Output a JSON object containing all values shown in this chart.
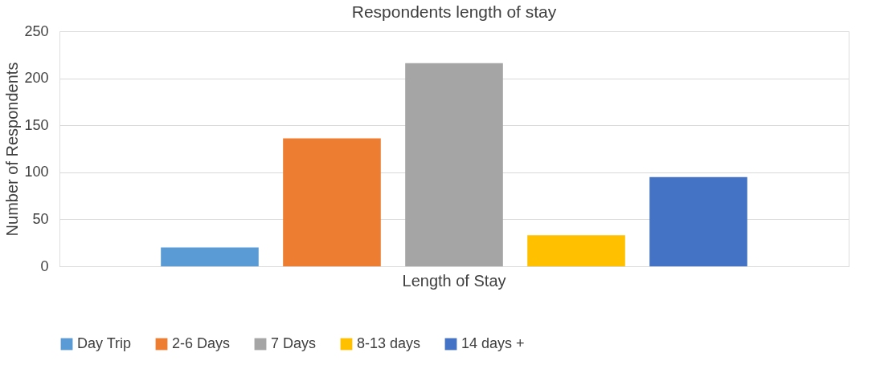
{
  "chart_data": {
    "type": "bar",
    "title": "Respondents length of stay",
    "ylabel": "Number of Respondents",
    "categories": [
      "Length of Stay"
    ],
    "series": [
      {
        "name": "Day Trip",
        "color": "#5b9bd5",
        "values": [
          20
        ]
      },
      {
        "name": "2-6 Days",
        "color": "#ed7d31",
        "values": [
          136
        ]
      },
      {
        "name": "7 Days",
        "color": "#a5a5a5",
        "values": [
          216
        ]
      },
      {
        "name": "8-13 days",
        "color": "#ffc000",
        "values": [
          33
        ]
      },
      {
        "name": "14 days +",
        "color": "#4472c4",
        "values": [
          95
        ]
      }
    ],
    "ylim": [
      0,
      250
    ],
    "yticks": [
      0,
      50,
      100,
      150,
      200,
      250
    ],
    "grid": "y",
    "legend": "bottom"
  }
}
